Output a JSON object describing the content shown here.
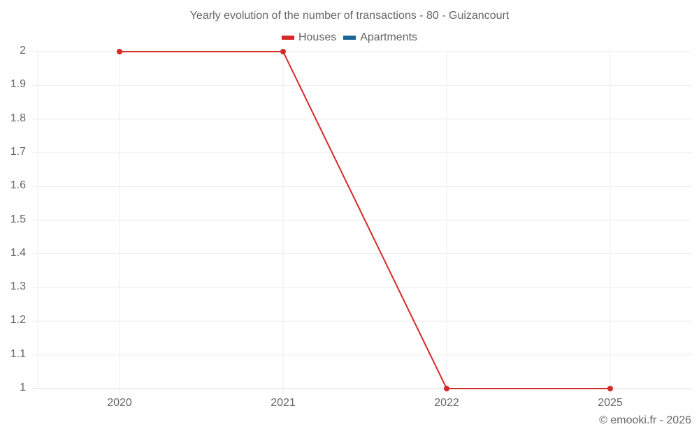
{
  "chart_data": {
    "type": "line",
    "title": "Yearly evolution of the number of transactions - 80 - Guizancourt",
    "categories": [
      "2020",
      "2021",
      "2022",
      "2025"
    ],
    "series": [
      {
        "name": "Houses",
        "color": "#d42a2a",
        "values": [
          2,
          2,
          1,
          1
        ]
      },
      {
        "name": "Apartments",
        "color": "#1a6496",
        "values": []
      }
    ],
    "xlabel": "",
    "ylabel": "",
    "ylim": [
      1,
      2
    ],
    "yticks": [
      "2",
      "1.9",
      "1.8",
      "1.7",
      "1.6",
      "1.5",
      "1.4",
      "1.3",
      "1.2",
      "1.1",
      "1"
    ],
    "grid": true,
    "legend_position": "top"
  },
  "legend": {
    "houses": "Houses",
    "apartments": "Apartments"
  },
  "credit": "© emooki.fr - 2026"
}
